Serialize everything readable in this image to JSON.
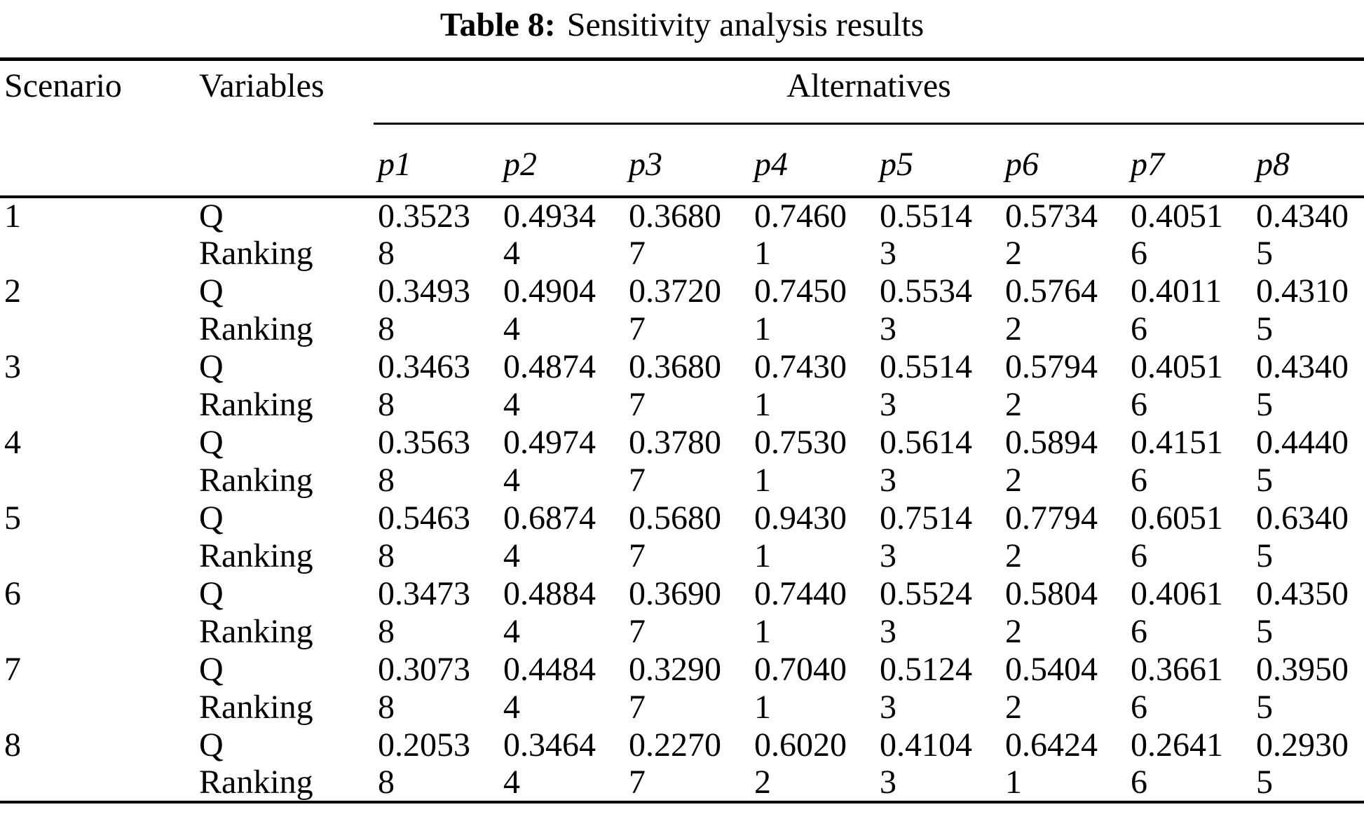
{
  "caption": {
    "label": "Table 8:",
    "text": "Sensitivity analysis results"
  },
  "table": {
    "headers": {
      "scenario": "Scenario",
      "variables": "Variables",
      "alternatives": "Alternatives"
    },
    "alt_columns": [
      "p1",
      "p2",
      "p3",
      "p4",
      "p5",
      "p6",
      "p7",
      "p8"
    ],
    "rows": [
      {
        "scenario": "1",
        "variable": "Q",
        "values": [
          "0.3523",
          "0.4934",
          "0.3680",
          "0.7460",
          "0.5514",
          "0.5734",
          "0.4051",
          "0.4340"
        ]
      },
      {
        "scenario": "",
        "variable": "Ranking",
        "values": [
          "8",
          "4",
          "7",
          "1",
          "3",
          "2",
          "6",
          "5"
        ]
      },
      {
        "scenario": "2",
        "variable": "Q",
        "values": [
          "0.3493",
          "0.4904",
          "0.3720",
          "0.7450",
          "0.5534",
          "0.5764",
          "0.4011",
          "0.4310"
        ]
      },
      {
        "scenario": "",
        "variable": "Ranking",
        "values": [
          "8",
          "4",
          "7",
          "1",
          "3",
          "2",
          "6",
          "5"
        ]
      },
      {
        "scenario": "3",
        "variable": "Q",
        "values": [
          "0.3463",
          "0.4874",
          "0.3680",
          "0.7430",
          "0.5514",
          "0.5794",
          "0.4051",
          "0.4340"
        ]
      },
      {
        "scenario": "",
        "variable": "Ranking",
        "values": [
          "8",
          "4",
          "7",
          "1",
          "3",
          "2",
          "6",
          "5"
        ]
      },
      {
        "scenario": "4",
        "variable": "Q",
        "values": [
          "0.3563",
          "0.4974",
          "0.3780",
          "0.7530",
          "0.5614",
          "0.5894",
          "0.4151",
          "0.4440"
        ]
      },
      {
        "scenario": "",
        "variable": "Ranking",
        "values": [
          "8",
          "4",
          "7",
          "1",
          "3",
          "2",
          "6",
          "5"
        ]
      },
      {
        "scenario": "5",
        "variable": "Q",
        "values": [
          "0.5463",
          "0.6874",
          "0.5680",
          "0.9430",
          "0.7514",
          "0.7794",
          "0.6051",
          "0.6340"
        ]
      },
      {
        "scenario": "",
        "variable": "Ranking",
        "values": [
          "8",
          "4",
          "7",
          "1",
          "3",
          "2",
          "6",
          "5"
        ]
      },
      {
        "scenario": "6",
        "variable": "Q",
        "values": [
          "0.3473",
          "0.4884",
          "0.3690",
          "0.7440",
          "0.5524",
          "0.5804",
          "0.4061",
          "0.4350"
        ]
      },
      {
        "scenario": "",
        "variable": "Ranking",
        "values": [
          "8",
          "4",
          "7",
          "1",
          "3",
          "2",
          "6",
          "5"
        ]
      },
      {
        "scenario": "7",
        "variable": "Q",
        "values": [
          "0.3073",
          "0.4484",
          "0.3290",
          "0.7040",
          "0.5124",
          "0.5404",
          "0.3661",
          "0.3950"
        ]
      },
      {
        "scenario": "",
        "variable": "Ranking",
        "values": [
          "8",
          "4",
          "7",
          "1",
          "3",
          "2",
          "6",
          "5"
        ]
      },
      {
        "scenario": "8",
        "variable": "Q",
        "values": [
          "0.2053",
          "0.3464",
          "0.2270",
          "0.6020",
          "0.4104",
          "0.6424",
          "0.2641",
          "0.2930"
        ]
      },
      {
        "scenario": "",
        "variable": "Ranking",
        "values": [
          "8",
          "4",
          "7",
          "2",
          "3",
          "1",
          "6",
          "5"
        ]
      }
    ]
  },
  "colors": {
    "ink": "#000000",
    "paper": "#ffffff"
  }
}
